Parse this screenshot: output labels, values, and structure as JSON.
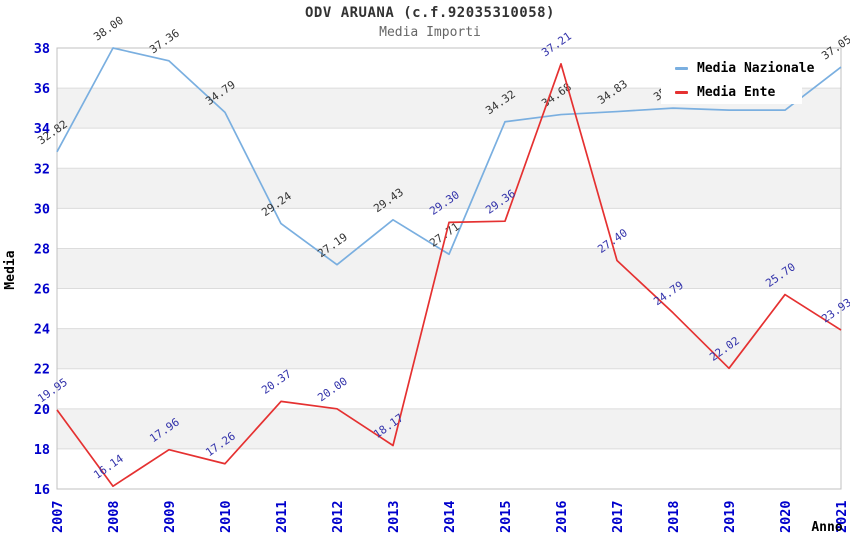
{
  "title": "ODV ARUANA (c.f.92035310058)",
  "subtitle": "Media Importi",
  "chart_data": {
    "type": "line",
    "x": [
      2007,
      2008,
      2009,
      2010,
      2011,
      2012,
      2013,
      2014,
      2015,
      2016,
      2017,
      2018,
      2019,
      2020,
      2021
    ],
    "xlabel": "Anno",
    "ylabel": "Media",
    "ylim": [
      16,
      38
    ],
    "ytick_step": 2,
    "grid": "horizontal gridlines with alternating gray bands every 2 units",
    "legend_position": "top-right inside plot, white box overlapping chart",
    "series": [
      {
        "name": "Media Nazionale",
        "color": "#7aafe0",
        "label_color": "#333333",
        "values": [
          32.82,
          38.0,
          37.36,
          34.79,
          29.24,
          27.19,
          29.43,
          27.71,
          34.32,
          34.68,
          34.83,
          35.0,
          34.9,
          34.9,
          37.05
        ],
        "note_labels_hidden_by_legend": [
          2018,
          2019,
          2020
        ]
      },
      {
        "name": "Media Ente",
        "color": "#e53131",
        "label_color": "#3232aa",
        "values": [
          19.95,
          16.14,
          17.96,
          17.26,
          20.37,
          20.0,
          18.17,
          29.3,
          29.36,
          37.21,
          27.4,
          24.79,
          22.02,
          25.7,
          23.93
        ]
      }
    ],
    "axis_tick_color": "#0000cc",
    "band_color": "#f2f2f2",
    "gridline_color": "#dcdcdc",
    "border_color": "#c0c0c0"
  }
}
